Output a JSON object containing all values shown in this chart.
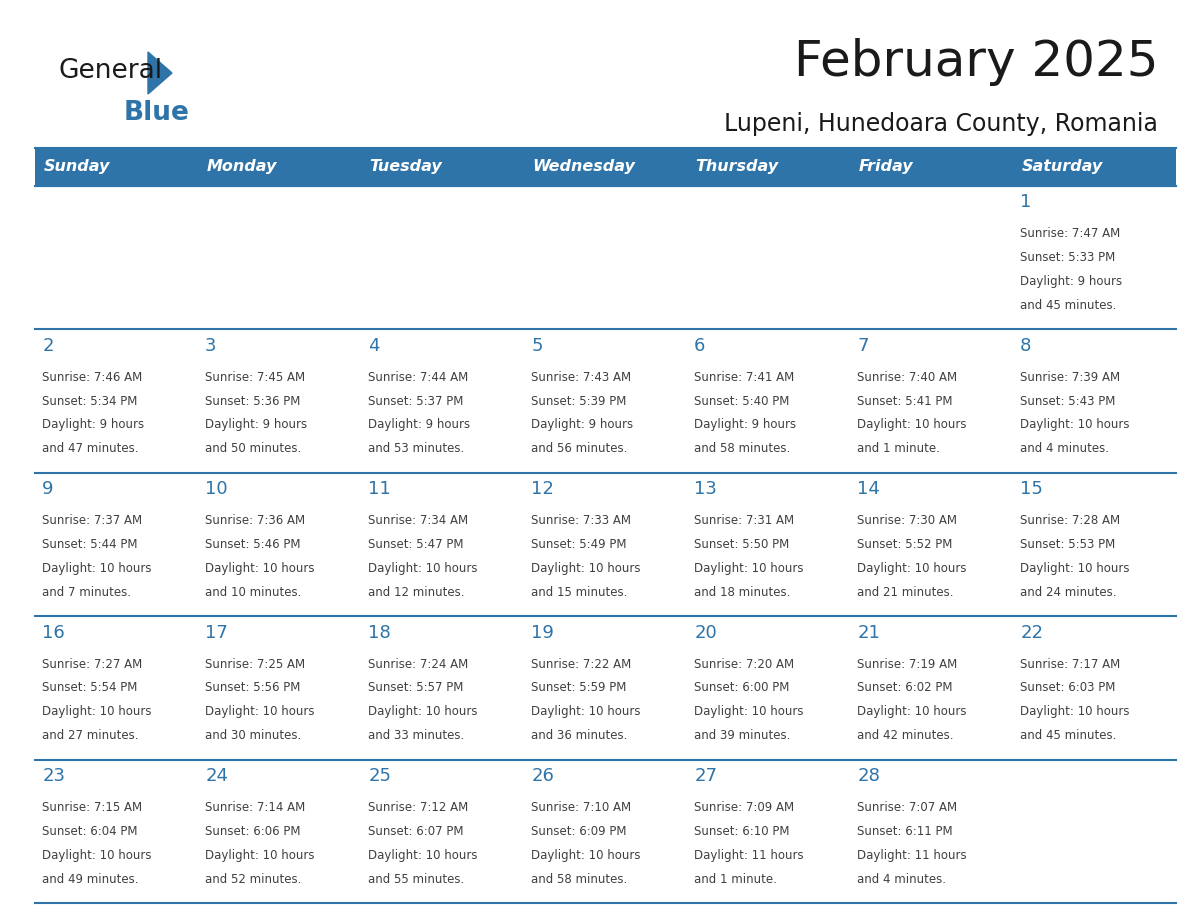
{
  "title": "February 2025",
  "subtitle": "Lupeni, Hunedoara County, Romania",
  "header_bg": "#2E74A8",
  "header_text_color": "#FFFFFF",
  "day_names": [
    "Sunday",
    "Monday",
    "Tuesday",
    "Wednesday",
    "Thursday",
    "Friday",
    "Saturday"
  ],
  "cell_bg": "#FFFFFF",
  "separator_color": "#2E74A8",
  "day_number_color": "#2E74A8",
  "text_color": "#404040",
  "logo_black": "#1a1a1a",
  "logo_blue": "#2E74A8",
  "days": [
    {
      "day": 1,
      "col": 6,
      "row": 0,
      "sunrise": "7:47 AM",
      "sunset": "5:33 PM",
      "daylight_line1": "Daylight: 9 hours",
      "daylight_line2": "and 45 minutes."
    },
    {
      "day": 2,
      "col": 0,
      "row": 1,
      "sunrise": "7:46 AM",
      "sunset": "5:34 PM",
      "daylight_line1": "Daylight: 9 hours",
      "daylight_line2": "and 47 minutes."
    },
    {
      "day": 3,
      "col": 1,
      "row": 1,
      "sunrise": "7:45 AM",
      "sunset": "5:36 PM",
      "daylight_line1": "Daylight: 9 hours",
      "daylight_line2": "and 50 minutes."
    },
    {
      "day": 4,
      "col": 2,
      "row": 1,
      "sunrise": "7:44 AM",
      "sunset": "5:37 PM",
      "daylight_line1": "Daylight: 9 hours",
      "daylight_line2": "and 53 minutes."
    },
    {
      "day": 5,
      "col": 3,
      "row": 1,
      "sunrise": "7:43 AM",
      "sunset": "5:39 PM",
      "daylight_line1": "Daylight: 9 hours",
      "daylight_line2": "and 56 minutes."
    },
    {
      "day": 6,
      "col": 4,
      "row": 1,
      "sunrise": "7:41 AM",
      "sunset": "5:40 PM",
      "daylight_line1": "Daylight: 9 hours",
      "daylight_line2": "and 58 minutes."
    },
    {
      "day": 7,
      "col": 5,
      "row": 1,
      "sunrise": "7:40 AM",
      "sunset": "5:41 PM",
      "daylight_line1": "Daylight: 10 hours",
      "daylight_line2": "and 1 minute."
    },
    {
      "day": 8,
      "col": 6,
      "row": 1,
      "sunrise": "7:39 AM",
      "sunset": "5:43 PM",
      "daylight_line1": "Daylight: 10 hours",
      "daylight_line2": "and 4 minutes."
    },
    {
      "day": 9,
      "col": 0,
      "row": 2,
      "sunrise": "7:37 AM",
      "sunset": "5:44 PM",
      "daylight_line1": "Daylight: 10 hours",
      "daylight_line2": "and 7 minutes."
    },
    {
      "day": 10,
      "col": 1,
      "row": 2,
      "sunrise": "7:36 AM",
      "sunset": "5:46 PM",
      "daylight_line1": "Daylight: 10 hours",
      "daylight_line2": "and 10 minutes."
    },
    {
      "day": 11,
      "col": 2,
      "row": 2,
      "sunrise": "7:34 AM",
      "sunset": "5:47 PM",
      "daylight_line1": "Daylight: 10 hours",
      "daylight_line2": "and 12 minutes."
    },
    {
      "day": 12,
      "col": 3,
      "row": 2,
      "sunrise": "7:33 AM",
      "sunset": "5:49 PM",
      "daylight_line1": "Daylight: 10 hours",
      "daylight_line2": "and 15 minutes."
    },
    {
      "day": 13,
      "col": 4,
      "row": 2,
      "sunrise": "7:31 AM",
      "sunset": "5:50 PM",
      "daylight_line1": "Daylight: 10 hours",
      "daylight_line2": "and 18 minutes."
    },
    {
      "day": 14,
      "col": 5,
      "row": 2,
      "sunrise": "7:30 AM",
      "sunset": "5:52 PM",
      "daylight_line1": "Daylight: 10 hours",
      "daylight_line2": "and 21 minutes."
    },
    {
      "day": 15,
      "col": 6,
      "row": 2,
      "sunrise": "7:28 AM",
      "sunset": "5:53 PM",
      "daylight_line1": "Daylight: 10 hours",
      "daylight_line2": "and 24 minutes."
    },
    {
      "day": 16,
      "col": 0,
      "row": 3,
      "sunrise": "7:27 AM",
      "sunset": "5:54 PM",
      "daylight_line1": "Daylight: 10 hours",
      "daylight_line2": "and 27 minutes."
    },
    {
      "day": 17,
      "col": 1,
      "row": 3,
      "sunrise": "7:25 AM",
      "sunset": "5:56 PM",
      "daylight_line1": "Daylight: 10 hours",
      "daylight_line2": "and 30 minutes."
    },
    {
      "day": 18,
      "col": 2,
      "row": 3,
      "sunrise": "7:24 AM",
      "sunset": "5:57 PM",
      "daylight_line1": "Daylight: 10 hours",
      "daylight_line2": "and 33 minutes."
    },
    {
      "day": 19,
      "col": 3,
      "row": 3,
      "sunrise": "7:22 AM",
      "sunset": "5:59 PM",
      "daylight_line1": "Daylight: 10 hours",
      "daylight_line2": "and 36 minutes."
    },
    {
      "day": 20,
      "col": 4,
      "row": 3,
      "sunrise": "7:20 AM",
      "sunset": "6:00 PM",
      "daylight_line1": "Daylight: 10 hours",
      "daylight_line2": "and 39 minutes."
    },
    {
      "day": 21,
      "col": 5,
      "row": 3,
      "sunrise": "7:19 AM",
      "sunset": "6:02 PM",
      "daylight_line1": "Daylight: 10 hours",
      "daylight_line2": "and 42 minutes."
    },
    {
      "day": 22,
      "col": 6,
      "row": 3,
      "sunrise": "7:17 AM",
      "sunset": "6:03 PM",
      "daylight_line1": "Daylight: 10 hours",
      "daylight_line2": "and 45 minutes."
    },
    {
      "day": 23,
      "col": 0,
      "row": 4,
      "sunrise": "7:15 AM",
      "sunset": "6:04 PM",
      "daylight_line1": "Daylight: 10 hours",
      "daylight_line2": "and 49 minutes."
    },
    {
      "day": 24,
      "col": 1,
      "row": 4,
      "sunrise": "7:14 AM",
      "sunset": "6:06 PM",
      "daylight_line1": "Daylight: 10 hours",
      "daylight_line2": "and 52 minutes."
    },
    {
      "day": 25,
      "col": 2,
      "row": 4,
      "sunrise": "7:12 AM",
      "sunset": "6:07 PM",
      "daylight_line1": "Daylight: 10 hours",
      "daylight_line2": "and 55 minutes."
    },
    {
      "day": 26,
      "col": 3,
      "row": 4,
      "sunrise": "7:10 AM",
      "sunset": "6:09 PM",
      "daylight_line1": "Daylight: 10 hours",
      "daylight_line2": "and 58 minutes."
    },
    {
      "day": 27,
      "col": 4,
      "row": 4,
      "sunrise": "7:09 AM",
      "sunset": "6:10 PM",
      "daylight_line1": "Daylight: 11 hours",
      "daylight_line2": "and 1 minute."
    },
    {
      "day": 28,
      "col": 5,
      "row": 4,
      "sunrise": "7:07 AM",
      "sunset": "6:11 PM",
      "daylight_line1": "Daylight: 11 hours",
      "daylight_line2": "and 4 minutes."
    }
  ],
  "fig_width": 11.88,
  "fig_height": 9.18,
  "dpi": 100
}
